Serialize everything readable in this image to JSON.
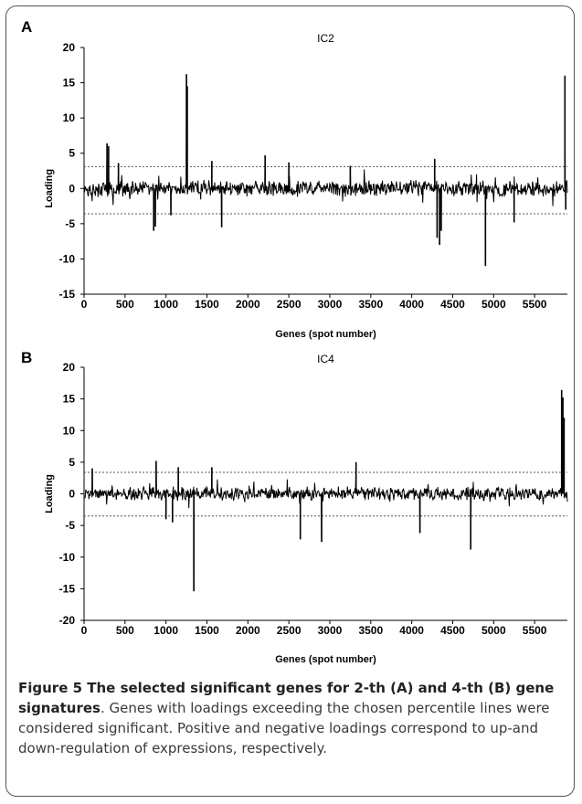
{
  "panel_a_letter": "A",
  "panel_b_letter": "B",
  "caption": {
    "title": "Figure 5 The selected significant genes for 2-th (A) and 4-th (B) gene signatures",
    "body": ". Genes with loadings exceeding the chosen percentile lines were considered significant. Positive and negative loadings correspond to up-and down-regulation of expressions, respectively."
  },
  "chart_data": [
    {
      "type": "line",
      "title": "IC2",
      "xlabel": "Genes (spot number)",
      "ylabel": "Loading",
      "xlim": [
        0,
        5900
      ],
      "ylim": [
        -15,
        20
      ],
      "xticks": [
        0,
        500,
        1000,
        1500,
        2000,
        2500,
        3000,
        3500,
        4000,
        4500,
        5000,
        5500
      ],
      "yticks": [
        20,
        15,
        10,
        5,
        0,
        -5,
        -10,
        -15
      ],
      "threshold_lines": [
        3.1,
        -3.6
      ],
      "noise_amplitude": 1.3,
      "spikes": [
        {
          "x": 280,
          "y": 6.4
        },
        {
          "x": 300,
          "y": 6.0
        },
        {
          "x": 420,
          "y": 3.6
        },
        {
          "x": 850,
          "y": -6.0
        },
        {
          "x": 870,
          "y": -5.4
        },
        {
          "x": 1060,
          "y": -3.8
        },
        {
          "x": 1250,
          "y": 16.2
        },
        {
          "x": 1260,
          "y": 14.5
        },
        {
          "x": 1560,
          "y": 3.9
        },
        {
          "x": 1680,
          "y": -5.5
        },
        {
          "x": 2210,
          "y": 4.7
        },
        {
          "x": 2500,
          "y": 3.7
        },
        {
          "x": 3250,
          "y": 3.2
        },
        {
          "x": 4280,
          "y": 4.2
        },
        {
          "x": 4310,
          "y": -7.0
        },
        {
          "x": 4340,
          "y": -8.0
        },
        {
          "x": 4360,
          "y": -6.0
        },
        {
          "x": 4900,
          "y": -11.0
        },
        {
          "x": 5250,
          "y": -4.8
        },
        {
          "x": 5870,
          "y": 16.0
        },
        {
          "x": 5880,
          "y": -3.0
        }
      ]
    },
    {
      "type": "line",
      "title": "IC4",
      "xlabel": "Genes (spot number)",
      "ylabel": "Loading",
      "xlim": [
        0,
        5900
      ],
      "ylim": [
        -20,
        20
      ],
      "xticks": [
        0,
        500,
        1000,
        1500,
        2000,
        2500,
        3000,
        3500,
        4000,
        4500,
        5000,
        5500
      ],
      "yticks": [
        20,
        15,
        10,
        5,
        0,
        -5,
        -10,
        -15,
        -20
      ],
      "threshold_lines": [
        3.4,
        -3.5
      ],
      "noise_amplitude": 1.2,
      "spikes": [
        {
          "x": 100,
          "y": 4.0
        },
        {
          "x": 880,
          "y": 5.2
        },
        {
          "x": 1000,
          "y": -4.0
        },
        {
          "x": 1080,
          "y": -4.5
        },
        {
          "x": 1150,
          "y": 4.2
        },
        {
          "x": 1340,
          "y": -15.4
        },
        {
          "x": 1560,
          "y": 4.2
        },
        {
          "x": 2640,
          "y": -7.2
        },
        {
          "x": 2900,
          "y": -7.6
        },
        {
          "x": 3320,
          "y": 5.0
        },
        {
          "x": 4100,
          "y": -6.2
        },
        {
          "x": 4720,
          "y": -8.8
        },
        {
          "x": 5830,
          "y": 16.4
        },
        {
          "x": 5845,
          "y": 15.2
        },
        {
          "x": 5860,
          "y": 12.0
        }
      ]
    }
  ]
}
